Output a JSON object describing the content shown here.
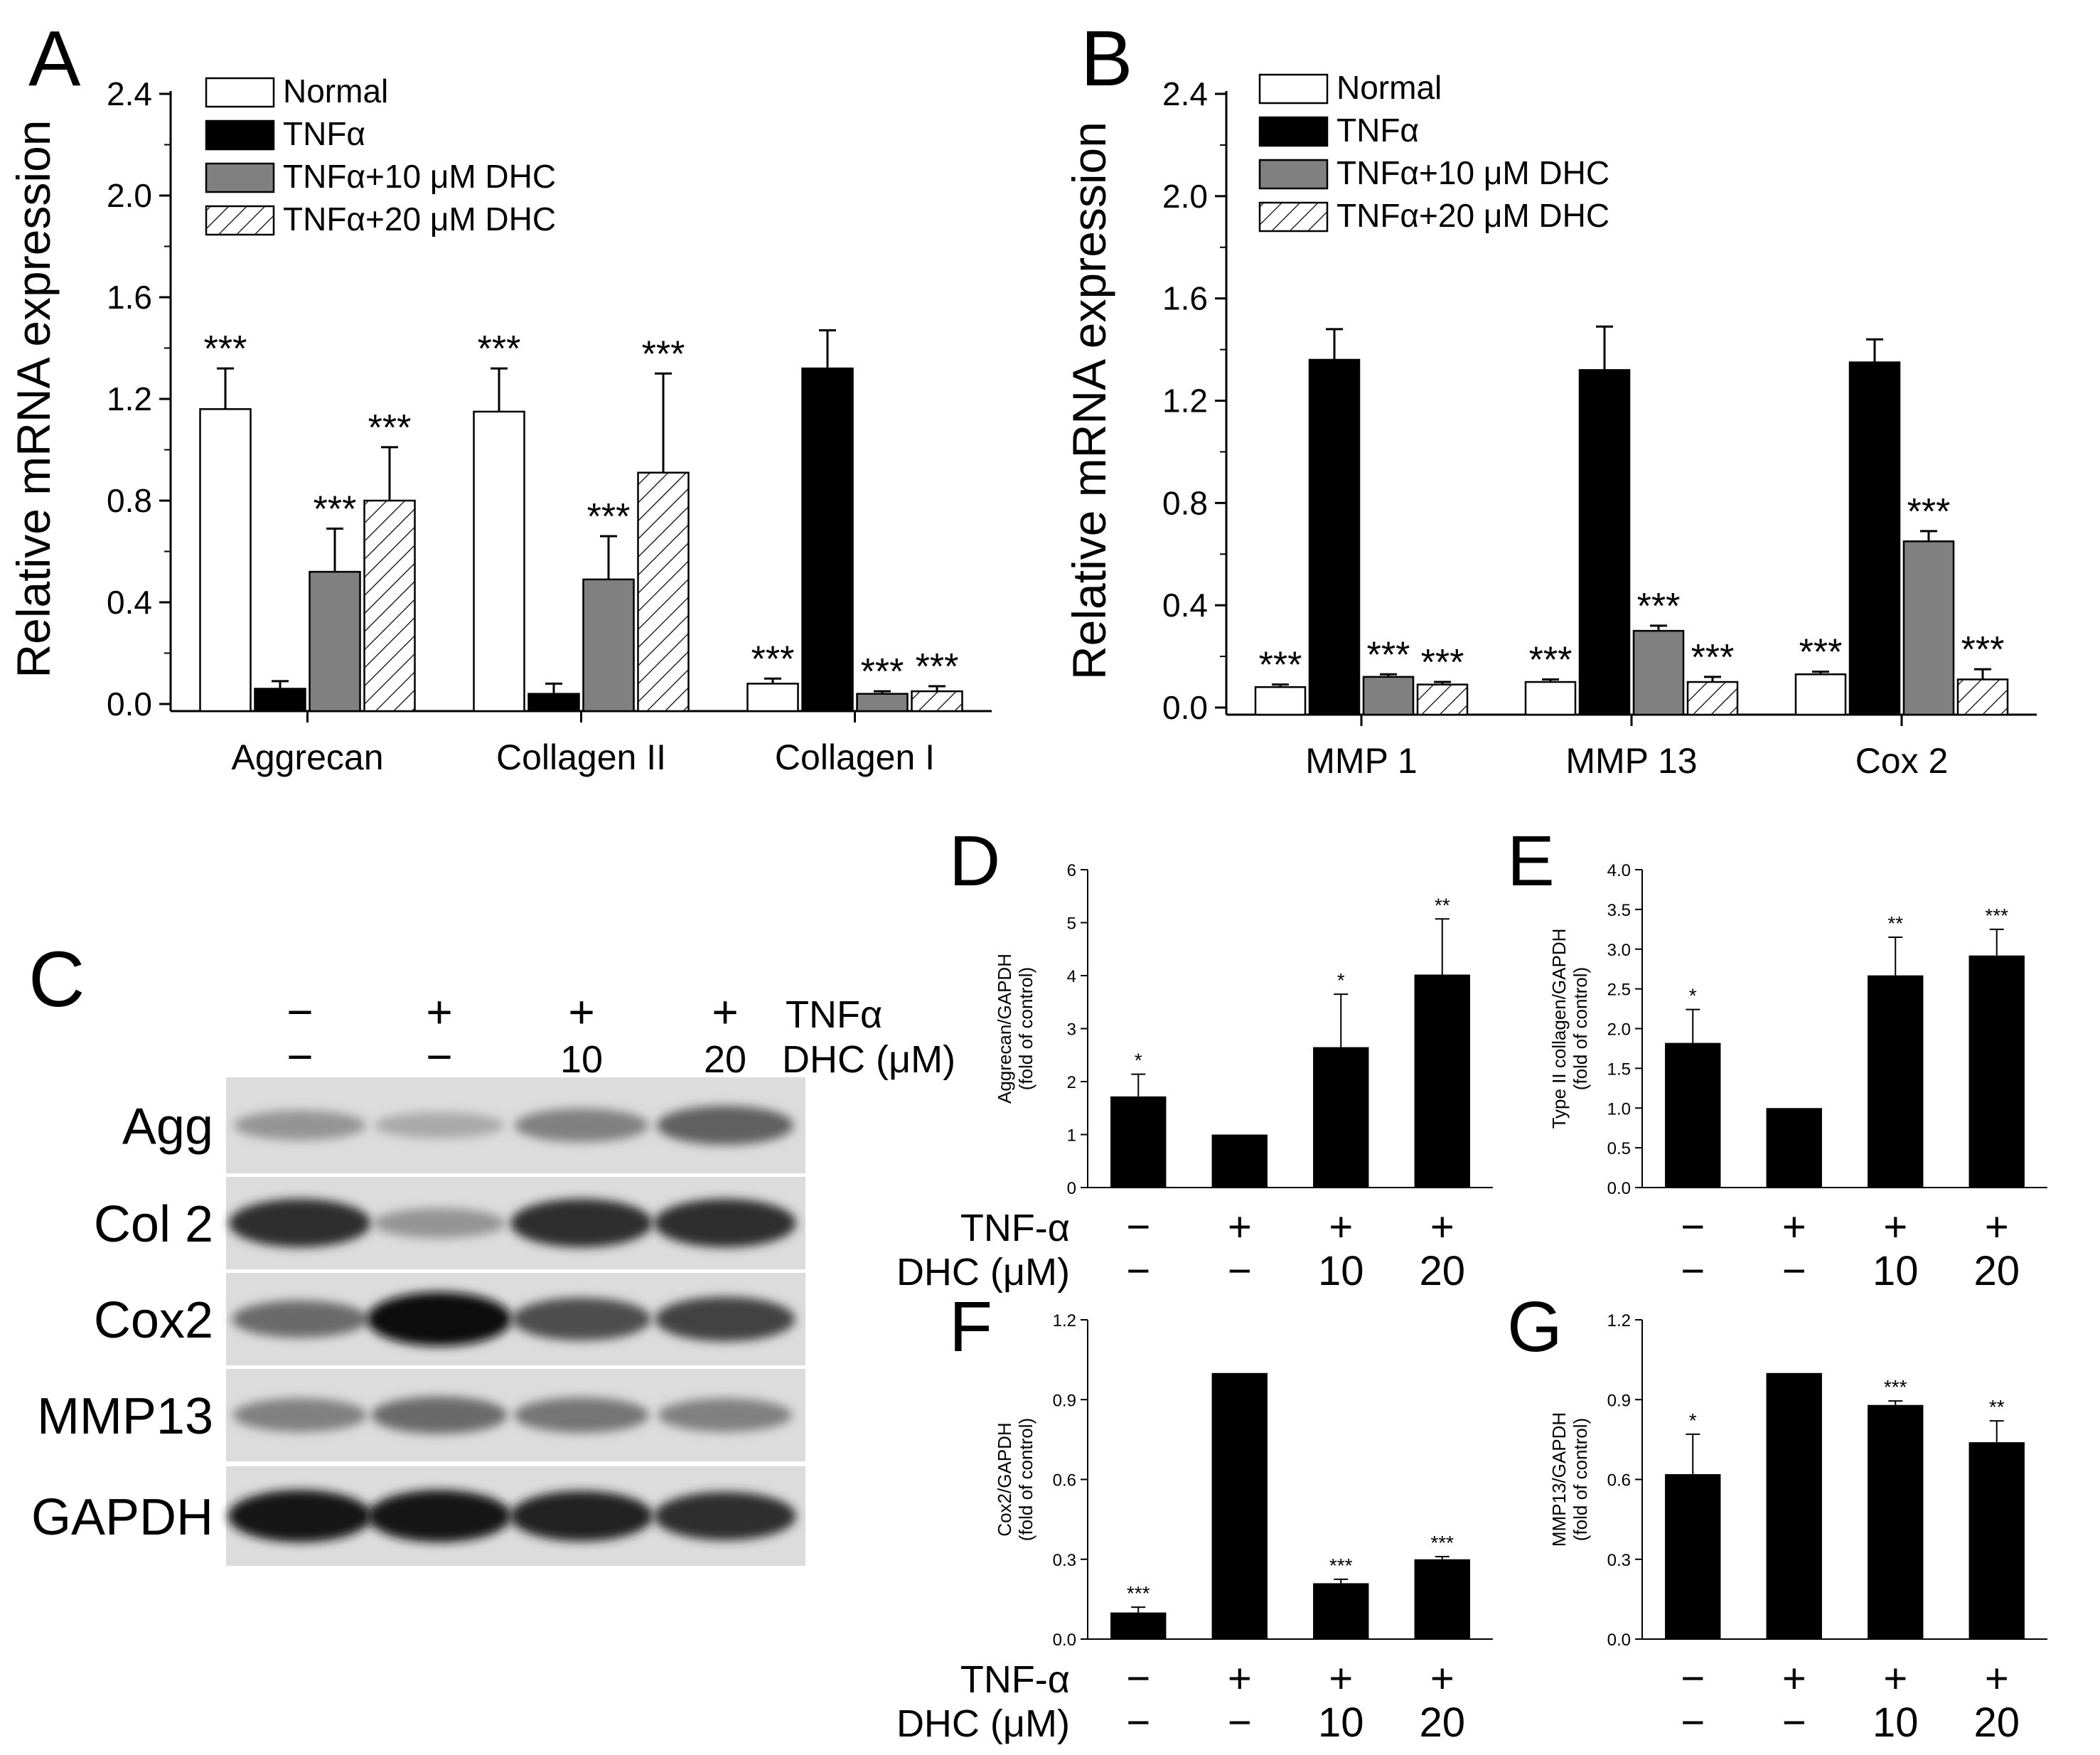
{
  "panel_letters": {
    "A": "A",
    "B": "B",
    "C": "C",
    "D": "D",
    "E": "E",
    "F": "F",
    "G": "G"
  },
  "legend": [
    "Normal",
    "TNFα",
    "TNFα+10 μM DHC",
    "TNFα+20 μM DHC"
  ],
  "colors": {
    "normal": "#ffffff",
    "tnf": "#000000",
    "dhc10": "#808080",
    "dhc20_hatch": "#000000",
    "band_light": "#dcdcdc",
    "band_dark": "#141414"
  },
  "treatments": {
    "tnf_label": "TNFα",
    "dhc_label": "DHC (μM)",
    "tnf_label_short": "TNF-α",
    "tnf": [
      "−",
      "+",
      "+",
      "+"
    ],
    "dhc": [
      "−",
      "−",
      "10",
      "20"
    ]
  },
  "blot": {
    "rows": [
      "Agg",
      "Col 2",
      "Cox2",
      "MMP13",
      "GAPDH"
    ],
    "intensity": [
      [
        0.35,
        0.25,
        0.45,
        0.6
      ],
      [
        0.85,
        0.35,
        0.85,
        0.85
      ],
      [
        0.55,
        1.0,
        0.7,
        0.75
      ],
      [
        0.45,
        0.55,
        0.5,
        0.45
      ],
      [
        0.95,
        0.95,
        0.9,
        0.85
      ]
    ]
  },
  "chart_data": [
    {
      "panel": "A",
      "type": "bar",
      "ylabel": "Relative mRNA expression",
      "ylim": [
        0,
        2.4
      ],
      "yticks": [
        "0.0",
        "0.4",
        "0.8",
        "1.2",
        "1.6",
        "2.0",
        "2.4"
      ],
      "categories": [
        "Aggrecan",
        "Collagen II",
        "Collagen I"
      ],
      "series": [
        {
          "name": "Normal",
          "values": [
            1.16,
            1.15,
            0.08
          ],
          "errors": [
            0.16,
            0.17,
            0.02
          ],
          "sig": [
            "***",
            "***",
            "***"
          ]
        },
        {
          "name": "TNFα",
          "values": [
            0.06,
            0.04,
            1.32
          ],
          "errors": [
            0.03,
            0.04,
            0.15
          ],
          "sig": [
            "",
            "",
            ""
          ]
        },
        {
          "name": "TNFα+10 μM DHC",
          "values": [
            0.52,
            0.49,
            0.04
          ],
          "errors": [
            0.17,
            0.17,
            0.01
          ],
          "sig": [
            "***",
            "***",
            "***"
          ]
        },
        {
          "name": "TNFα+20 μM DHC",
          "values": [
            0.8,
            0.91,
            0.05
          ],
          "errors": [
            0.21,
            0.39,
            0.02
          ],
          "sig": [
            "***",
            "***",
            "***"
          ]
        }
      ]
    },
    {
      "panel": "B",
      "type": "bar",
      "ylabel": "Relative mRNA expression",
      "ylim": [
        0,
        2.4
      ],
      "yticks": [
        "0.0",
        "0.4",
        "0.8",
        "1.2",
        "1.6",
        "2.0",
        "2.4"
      ],
      "categories": [
        "MMP 1",
        "MMP 13",
        "Cox 2"
      ],
      "series": [
        {
          "name": "Normal",
          "values": [
            0.08,
            0.1,
            0.13
          ],
          "errors": [
            0.01,
            0.01,
            0.01
          ],
          "sig": [
            "***",
            "***",
            "***"
          ]
        },
        {
          "name": "TNFα",
          "values": [
            1.36,
            1.32,
            1.35
          ],
          "errors": [
            0.12,
            0.17,
            0.09
          ],
          "sig": [
            "",
            "",
            ""
          ]
        },
        {
          "name": "TNFα+10 μM DHC",
          "values": [
            0.12,
            0.3,
            0.65
          ],
          "errors": [
            0.01,
            0.02,
            0.04
          ],
          "sig": [
            "***",
            "***",
            "***"
          ]
        },
        {
          "name": "TNFα+20 μM DHC",
          "values": [
            0.09,
            0.1,
            0.11
          ],
          "errors": [
            0.01,
            0.02,
            0.04
          ],
          "sig": [
            "***",
            "***",
            "***"
          ]
        }
      ]
    },
    {
      "panel": "D",
      "type": "bar",
      "ylabel": "Aggrecan/GAPDH",
      "ylabel2": "(fold of control)",
      "ylim": [
        0,
        6
      ],
      "yticks": [
        "0",
        "1",
        "2",
        "3",
        "4",
        "5",
        "6"
      ],
      "values": [
        1.72,
        1.0,
        2.65,
        4.02
      ],
      "errors": [
        0.42,
        0,
        1.0,
        1.05
      ],
      "sig": [
        "*",
        "",
        "*",
        "**"
      ]
    },
    {
      "panel": "E",
      "type": "bar",
      "ylabel": "Type II collagen/GAPDH",
      "ylabel2": "(fold of control)",
      "ylim": [
        0,
        4.0
      ],
      "yticks": [
        "0.0",
        "0.5",
        "1.0",
        "1.5",
        "2.0",
        "2.5",
        "3.0",
        "3.5",
        "4.0"
      ],
      "values": [
        1.82,
        1.0,
        2.67,
        2.92
      ],
      "errors": [
        0.42,
        0,
        0.48,
        0.33
      ],
      "sig": [
        "*",
        "",
        "**",
        "***"
      ]
    },
    {
      "panel": "F",
      "type": "bar",
      "ylabel": "Cox2/GAPDH",
      "ylabel2": "(fold of control)",
      "ylim": [
        0,
        1.2
      ],
      "yticks": [
        "0.0",
        "0.3",
        "0.6",
        "0.9",
        "1.2"
      ],
      "values": [
        0.1,
        1.0,
        0.21,
        0.3
      ],
      "errors": [
        0.02,
        0,
        0.015,
        0.01
      ],
      "sig": [
        "***",
        "",
        "***",
        "***"
      ]
    },
    {
      "panel": "G",
      "type": "bar",
      "ylabel": "MMP13/GAPDH",
      "ylabel2": "(fold of control)",
      "ylim": [
        0,
        1.2
      ],
      "yticks": [
        "0.0",
        "0.3",
        "0.6",
        "0.9",
        "1.2"
      ],
      "values": [
        0.62,
        1.0,
        0.88,
        0.74
      ],
      "errors": [
        0.15,
        0,
        0.015,
        0.08
      ],
      "sig": [
        "*",
        "",
        "***",
        "**"
      ]
    }
  ]
}
